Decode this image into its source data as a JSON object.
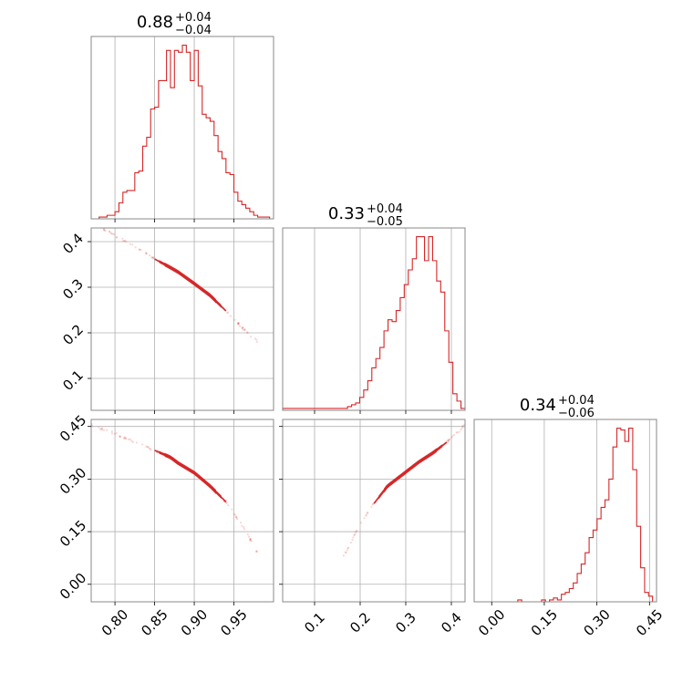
{
  "chart_data": {
    "type": "corner",
    "color": "#d62728",
    "grid": true,
    "params": [
      {
        "range": [
          0.77,
          1.0
        ],
        "ticks": [
          0.8,
          0.85,
          0.9,
          0.95
        ],
        "tick_labels": [
          "0.80",
          "0.85",
          "0.90",
          "0.95"
        ],
        "title": {
          "median": "0.88",
          "upper": "+0.04",
          "lower": "−0.04"
        },
        "hist": {
          "edges_range": [
            0.77,
            1.0
          ],
          "counts": [
            0,
            0,
            1,
            1,
            2,
            2,
            4,
            9,
            15,
            16,
            16,
            26,
            27,
            41,
            46,
            62,
            63,
            78,
            78,
            95,
            74,
            95,
            94,
            98,
            94,
            78,
            95,
            75,
            59,
            57,
            55,
            47,
            38,
            34,
            26,
            25,
            15,
            10,
            8,
            6,
            4,
            2,
            1,
            1,
            1,
            0
          ],
          "max": 98
        }
      },
      {
        "range": [
          0.03,
          0.43
        ],
        "ticks": [
          0.1,
          0.2,
          0.3,
          0.4
        ],
        "tick_labels": [
          "0.1",
          "0.2",
          "0.3",
          "0.4"
        ],
        "title": {
          "median": "0.33",
          "upper": "+0.04",
          "lower": "−0.05"
        },
        "hist": {
          "edges_range": [
            0.03,
            0.43
          ],
          "counts": [
            1,
            1,
            1,
            1,
            1,
            1,
            1,
            1,
            1,
            1,
            1,
            1,
            1,
            1,
            1,
            1,
            2,
            3,
            4,
            7,
            11,
            16,
            23,
            28,
            34,
            43,
            49,
            48,
            54,
            61,
            68,
            76,
            82,
            94,
            94,
            81,
            94,
            81,
            70,
            64,
            43,
            26,
            9,
            5,
            1
          ],
          "max": 94
        }
      },
      {
        "range": [
          -0.05,
          0.47
        ],
        "ticks": [
          0.0,
          0.15,
          0.3,
          0.45
        ],
        "tick_labels": [
          "0.00",
          "0.15",
          "0.30",
          "0.45"
        ],
        "title": {
          "median": "0.34",
          "upper": "+0.04",
          "lower": "−0.06"
        },
        "hist": {
          "edges_range": [
            -0.05,
            0.47
          ],
          "counts": [
            0,
            0,
            0,
            0,
            0,
            0,
            0,
            0,
            0,
            0,
            0,
            1,
            0,
            0,
            0,
            0,
            0,
            1,
            0,
            1,
            2,
            1,
            4,
            5,
            7,
            10,
            15,
            20,
            26,
            34,
            38,
            44,
            50,
            54,
            65,
            82,
            92,
            91,
            85,
            92,
            70,
            40,
            18,
            5,
            3,
            0
          ],
          "max": 92
        }
      }
    ],
    "pairs": [
      {
        "x": 0,
        "y": 1,
        "relation": [
          [
            0.77,
            0.445
          ],
          [
            0.8,
            0.413
          ],
          [
            0.83,
            0.385
          ],
          [
            0.85,
            0.362
          ],
          [
            0.87,
            0.343
          ],
          [
            0.88,
            0.333
          ],
          [
            0.9,
            0.308
          ],
          [
            0.92,
            0.282
          ],
          [
            0.94,
            0.248
          ],
          [
            0.96,
            0.212
          ],
          [
            0.98,
            0.18
          ]
        ]
      },
      {
        "x": 0,
        "y": 2,
        "relation": [
          [
            0.77,
            0.455
          ],
          [
            0.8,
            0.43
          ],
          [
            0.83,
            0.4
          ],
          [
            0.85,
            0.382
          ],
          [
            0.87,
            0.362
          ],
          [
            0.88,
            0.345
          ],
          [
            0.9,
            0.318
          ],
          [
            0.92,
            0.28
          ],
          [
            0.94,
            0.235
          ],
          [
            0.96,
            0.17
          ],
          [
            0.98,
            0.09
          ]
        ]
      },
      {
        "x": 1,
        "y": 2,
        "relation": [
          [
            0.16,
            0.07
          ],
          [
            0.18,
            0.12
          ],
          [
            0.2,
            0.175
          ],
          [
            0.23,
            0.23
          ],
          [
            0.26,
            0.28
          ],
          [
            0.3,
            0.32
          ],
          [
            0.33,
            0.35
          ],
          [
            0.36,
            0.375
          ],
          [
            0.39,
            0.405
          ],
          [
            0.42,
            0.44
          ],
          [
            0.43,
            0.46
          ]
        ]
      }
    ]
  }
}
